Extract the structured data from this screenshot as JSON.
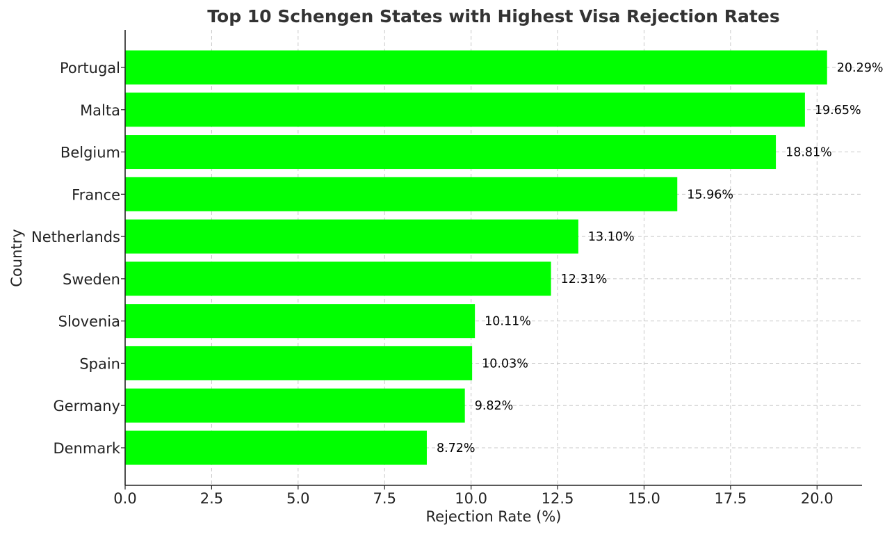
{
  "chart_data": {
    "type": "bar",
    "orientation": "horizontal",
    "title": "Top 10 Schengen States with Highest Visa Rejection Rates",
    "xlabel": "Rejection Rate (%)",
    "ylabel": "Country",
    "categories": [
      "Portugal",
      "Malta",
      "Belgium",
      "France",
      "Netherlands",
      "Sweden",
      "Slovenia",
      "Spain",
      "Germany",
      "Denmark"
    ],
    "values": [
      20.29,
      19.65,
      18.81,
      15.96,
      13.1,
      12.31,
      10.11,
      10.03,
      9.82,
      8.72
    ],
    "value_labels": [
      "20.29%",
      "19.65%",
      "18.81%",
      "15.96%",
      "13.10%",
      "12.31%",
      "10.11%",
      "10.03%",
      "9.82%",
      "8.72%"
    ],
    "xlim": [
      0,
      21.3
    ],
    "xticks": [
      0.0,
      2.5,
      5.0,
      7.5,
      10.0,
      12.5,
      15.0,
      17.5,
      20.0
    ],
    "xtick_labels": [
      "0.0",
      "2.5",
      "5.0",
      "7.5",
      "10.0",
      "12.5",
      "15.0",
      "17.5",
      "20.0"
    ],
    "grid": true,
    "bar_color": "#00ff00"
  }
}
